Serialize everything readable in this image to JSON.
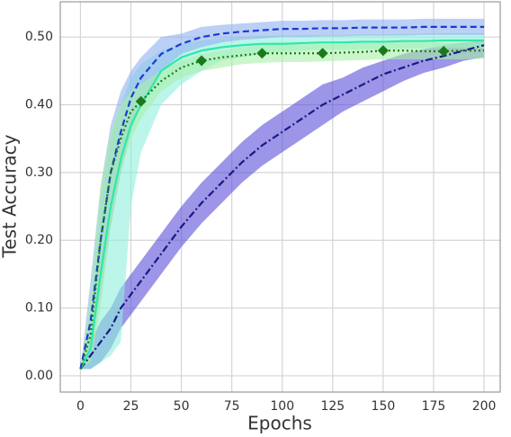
{
  "chart_data": {
    "type": "line",
    "xlabel": "Epochs",
    "ylabel": "Test Accuracy",
    "x": [
      0,
      5,
      10,
      15,
      20,
      25,
      30,
      40,
      50,
      60,
      70,
      80,
      90,
      100,
      110,
      120,
      130,
      140,
      150,
      160,
      170,
      180,
      190,
      200
    ],
    "xlim": [
      -10,
      208
    ],
    "xticks": [
      0,
      25,
      50,
      75,
      100,
      125,
      150,
      175,
      200
    ],
    "ylim": [
      -0.024,
      0.552
    ],
    "yticks": [
      {
        "value": 0,
        "label": "0.00"
      },
      {
        "value": 0.1,
        "label": "0.10"
      },
      {
        "value": 0.2,
        "label": "0.20"
      },
      {
        "value": 0.3,
        "label": "0.30"
      },
      {
        "value": 0.4,
        "label": "0.40"
      },
      {
        "value": 0.5,
        "label": "0.50"
      }
    ],
    "grid": true,
    "series": [
      {
        "color": "#1a1a80",
        "band_color": "#5a4fd8",
        "linestyle": "dashdot",
        "values": [
          0.01,
          0.03,
          0.05,
          0.07,
          0.1,
          0.12,
          0.14,
          0.18,
          0.22,
          0.255,
          0.285,
          0.315,
          0.34,
          0.36,
          0.38,
          0.4,
          0.415,
          0.43,
          0.445,
          0.455,
          0.465,
          0.472,
          0.48,
          0.488
        ],
        "lower": [
          0.01,
          0.01,
          0.02,
          0.04,
          0.07,
          0.09,
          0.11,
          0.15,
          0.19,
          0.225,
          0.255,
          0.285,
          0.31,
          0.33,
          0.35,
          0.37,
          0.39,
          0.405,
          0.42,
          0.435,
          0.447,
          0.455,
          0.465,
          0.47
        ],
        "upper": [
          0.01,
          0.05,
          0.08,
          0.1,
          0.13,
          0.15,
          0.17,
          0.21,
          0.25,
          0.285,
          0.315,
          0.345,
          0.37,
          0.39,
          0.41,
          0.43,
          0.44,
          0.455,
          0.465,
          0.475,
          0.482,
          0.488,
          0.492,
          0.495
        ]
      },
      {
        "color": "#2ee8a8",
        "band_color": "#8ff0dc",
        "linestyle": "solid",
        "values": [
          0.01,
          0.04,
          0.15,
          0.25,
          0.32,
          0.37,
          0.4,
          0.45,
          0.47,
          0.48,
          0.485,
          0.488,
          0.49,
          0.49,
          0.491,
          0.492,
          0.492,
          0.493,
          0.493,
          0.494,
          0.494,
          0.495,
          0.495,
          0.495
        ],
        "lower": [
          0.01,
          0.01,
          0.02,
          0.03,
          0.05,
          0.25,
          0.33,
          0.4,
          0.43,
          0.45,
          0.465,
          0.47,
          0.475,
          0.478,
          0.48,
          0.481,
          0.481,
          0.482,
          0.482,
          0.483,
          0.483,
          0.484,
          0.484,
          0.484
        ],
        "upper": [
          0.01,
          0.1,
          0.25,
          0.35,
          0.4,
          0.44,
          0.46,
          0.48,
          0.49,
          0.495,
          0.498,
          0.5,
          0.502,
          0.502,
          0.503,
          0.503,
          0.503,
          0.504,
          0.504,
          0.505,
          0.505,
          0.506,
          0.506,
          0.506
        ]
      },
      {
        "color": "#1a3ad8",
        "band_color": "#8fb0f0",
        "linestyle": "dashed",
        "values": [
          0.01,
          0.08,
          0.2,
          0.3,
          0.36,
          0.41,
          0.44,
          0.475,
          0.49,
          0.5,
          0.505,
          0.508,
          0.51,
          0.512,
          0.512,
          0.513,
          0.513,
          0.514,
          0.514,
          0.514,
          0.515,
          0.515,
          0.515,
          0.515
        ],
        "lower": [
          0.01,
          0.03,
          0.12,
          0.22,
          0.3,
          0.36,
          0.4,
          0.45,
          0.475,
          0.485,
          0.492,
          0.496,
          0.498,
          0.5,
          0.5,
          0.501,
          0.501,
          0.502,
          0.502,
          0.502,
          0.503,
          0.503,
          0.503,
          0.503
        ],
        "upper": [
          0.01,
          0.14,
          0.28,
          0.37,
          0.42,
          0.45,
          0.47,
          0.5,
          0.505,
          0.515,
          0.518,
          0.52,
          0.522,
          0.524,
          0.524,
          0.525,
          0.525,
          0.526,
          0.526,
          0.526,
          0.527,
          0.527,
          0.527,
          0.527
        ]
      },
      {
        "color": "#1a7a1a",
        "band_color": "#a8f0a8",
        "linestyle": "dotted",
        "marker": "diamond",
        "marker_every": 30,
        "values": [
          0.01,
          0.06,
          0.2,
          0.3,
          0.35,
          0.39,
          0.405,
          0.435,
          0.455,
          0.465,
          0.47,
          0.473,
          0.476,
          0.476,
          0.476,
          0.476,
          0.477,
          0.478,
          0.48,
          0.48,
          0.479,
          0.479,
          0.48,
          0.48
        ],
        "lower": [
          0.01,
          0.02,
          0.1,
          0.22,
          0.3,
          0.35,
          0.38,
          0.42,
          0.44,
          0.45,
          0.455,
          0.46,
          0.462,
          0.463,
          0.463,
          0.464,
          0.465,
          0.466,
          0.467,
          0.467,
          0.467,
          0.467,
          0.467,
          0.468
        ],
        "upper": [
          0.01,
          0.12,
          0.28,
          0.36,
          0.4,
          0.42,
          0.43,
          0.45,
          0.465,
          0.475,
          0.48,
          0.485,
          0.488,
          0.489,
          0.489,
          0.49,
          0.49,
          0.491,
          0.492,
          0.492,
          0.492,
          0.492,
          0.492,
          0.493
        ]
      }
    ]
  }
}
